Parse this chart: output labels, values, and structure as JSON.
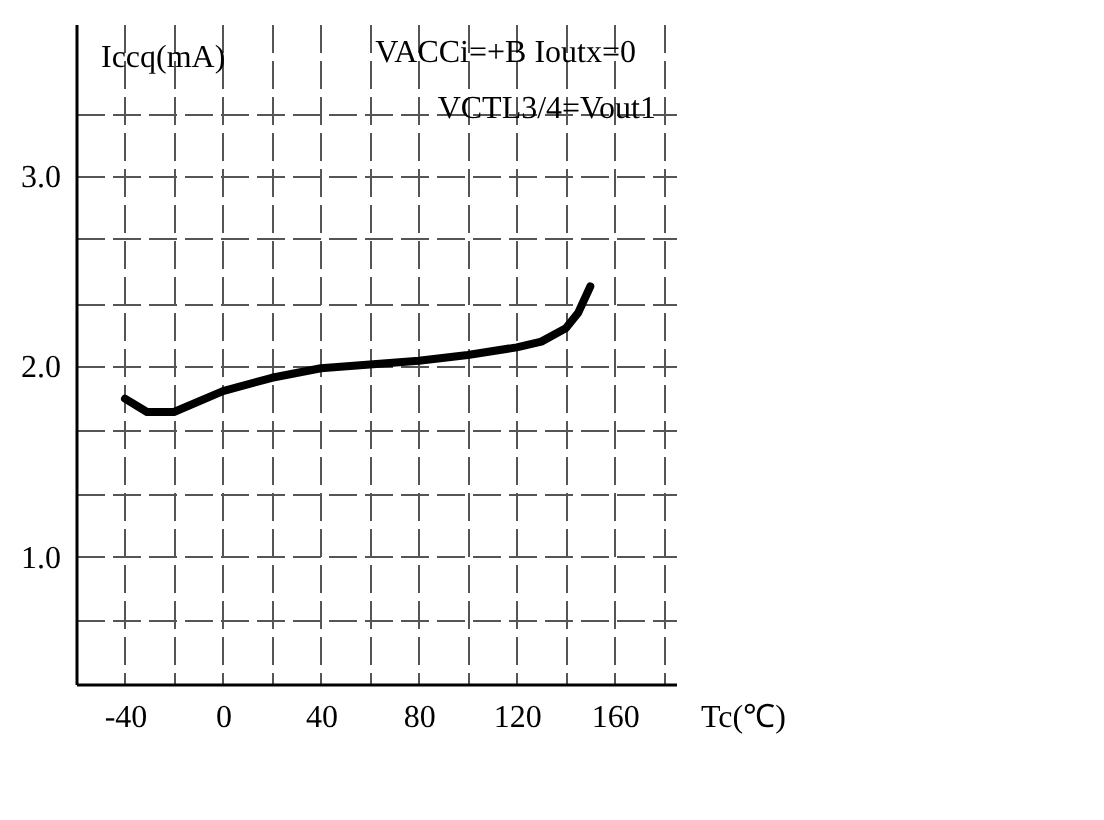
{
  "chart_data": {
    "type": "line",
    "xlabel": "Tc(℃)",
    "ylabel": "Iccq(mA)",
    "annotations": [
      "VACCi=+B  Ioutx=0",
      "VCTL3/4=Vout1"
    ],
    "x": [
      -40,
      -31,
      -20,
      0,
      20,
      40,
      60,
      80,
      100,
      120,
      130,
      140,
      145,
      150
    ],
    "series": [
      {
        "color": "#000000",
        "values": [
          1.83,
          1.76,
          1.76,
          1.87,
          1.94,
          1.99,
          2.01,
          2.03,
          2.06,
          2.1,
          2.13,
          2.2,
          2.28,
          2.42
        ]
      }
    ],
    "xlim": [
      -60,
      185
    ],
    "xticks": [
      -40,
      {
        "value": -20,
        "label": null
      },
      0,
      {
        "value": 20,
        "label": null
      },
      40,
      {
        "value": 60,
        "label": null
      },
      80,
      {
        "value": 100,
        "label": null
      },
      120,
      {
        "value": 140,
        "label": null
      },
      160,
      {
        "value": 180,
        "label": null
      }
    ],
    "ylim": [
      0.33,
      3.8
    ],
    "yticks": [
      {
        "value": 0.67,
        "label": null
      },
      {
        "value": 1,
        "label": "1.0"
      },
      {
        "value": 1.33,
        "label": null
      },
      {
        "value": 1.67,
        "label": null
      },
      {
        "value": 2,
        "label": "2.0"
      },
      {
        "value": 2.33,
        "label": null
      },
      {
        "value": 2.67,
        "label": null
      },
      {
        "value": 3,
        "label": "3.0"
      },
      {
        "value": 3.33,
        "label": null
      }
    ],
    "grid": true,
    "marker": "none",
    "line_style": "solid"
  }
}
